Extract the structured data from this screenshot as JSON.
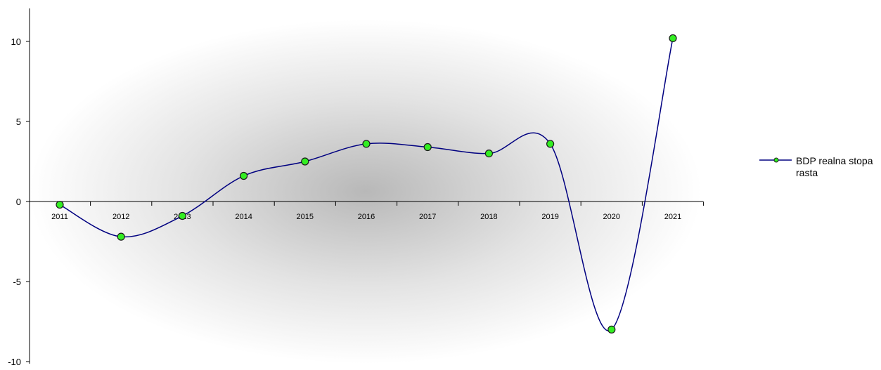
{
  "chart_data": {
    "type": "line",
    "title": "",
    "xlabel": "",
    "ylabel": "",
    "categories": [
      "2011",
      "2012",
      "2013",
      "2014",
      "2015",
      "2016",
      "2017",
      "2018",
      "2019",
      "2020",
      "2021"
    ],
    "ylim": [
      -10,
      12
    ],
    "yticks": [
      -10,
      -5,
      0,
      5,
      10
    ],
    "grid": false,
    "smooth": true,
    "legend_position": "right",
    "series": [
      {
        "name": "BDP realna stopa rasta",
        "values": [
          -0.2,
          -2.2,
          -0.9,
          1.6,
          2.5,
          3.6,
          3.4,
          3.0,
          3.6,
          -8.0,
          10.2
        ],
        "line_color": "#000080",
        "marker_color": "#33ee22"
      }
    ]
  },
  "legend": {
    "label": "BDP realna stopa rasta"
  }
}
